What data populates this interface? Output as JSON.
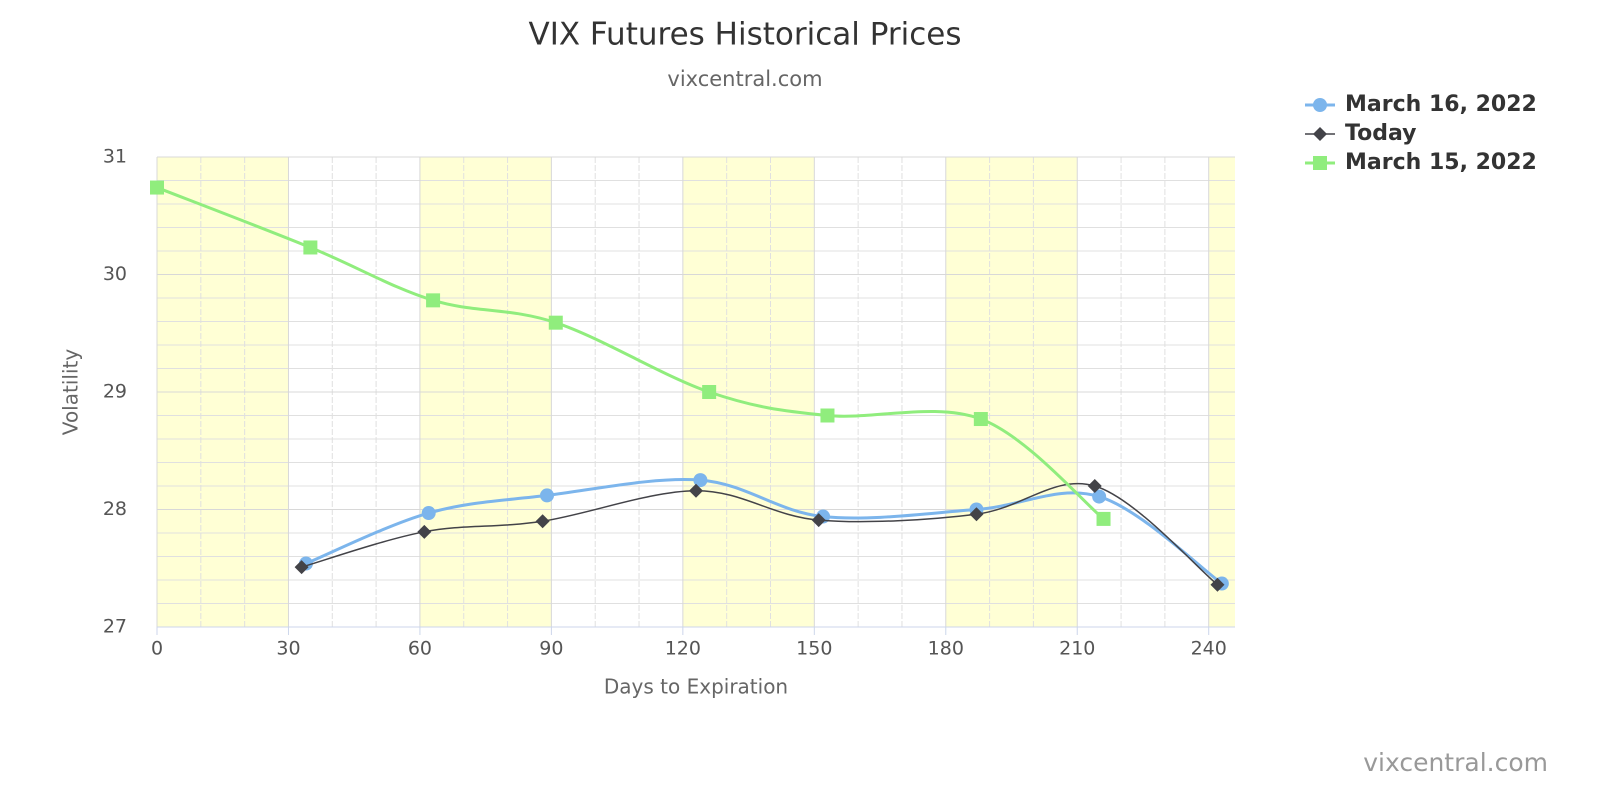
{
  "chart_data": {
    "type": "line",
    "title": "VIX Futures Historical Prices",
    "subtitle": "vixcentral.com",
    "credits": "vixcentral.com",
    "x_label": "Days to Expiration",
    "y_label": "Volatility",
    "xlim": [
      0,
      246
    ],
    "xticks": [
      0,
      30,
      60,
      90,
      120,
      150,
      180,
      210,
      240
    ],
    "ylim": [
      27,
      31
    ],
    "yticks": [
      27,
      28,
      29,
      30,
      31
    ],
    "grid": true,
    "smooth": true,
    "legend_position": "top-right",
    "band_color": "#ffffd5",
    "series": [
      {
        "name": "March 16, 2022",
        "color": "#7cb5ec",
        "marker": "circle",
        "x": [
          34,
          62,
          89,
          124,
          152,
          187,
          215,
          243
        ],
        "values": [
          27.54,
          27.97,
          28.12,
          28.25,
          27.94,
          28.0,
          28.11,
          27.37
        ]
      },
      {
        "name": "Today",
        "color": "#434348",
        "marker": "diamond",
        "x": [
          33,
          61,
          88,
          123,
          151,
          187,
          214,
          242
        ],
        "values": [
          27.51,
          27.81,
          27.9,
          28.16,
          27.91,
          27.96,
          28.2,
          27.36
        ]
      },
      {
        "name": "March 15, 2022",
        "color": "#90ed7d",
        "marker": "square",
        "x": [
          0,
          35,
          63,
          91,
          126,
          153,
          188,
          216
        ],
        "values": [
          30.74,
          30.23,
          29.78,
          29.59,
          29.0,
          28.8,
          28.77,
          27.92
        ]
      }
    ]
  }
}
